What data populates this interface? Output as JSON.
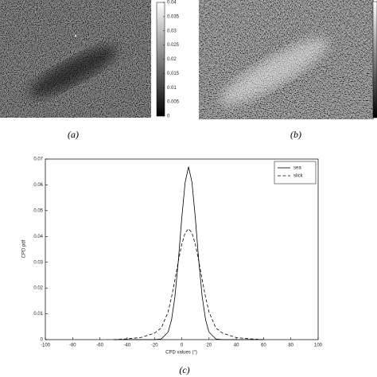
{
  "panels": {
    "a": {
      "label": "(a)",
      "colorbar": {
        "lim": [
          0,
          0.04
        ],
        "ticks": [
          0,
          0.005,
          0.01,
          0.015,
          0.02,
          0.025,
          0.03,
          0.035,
          0.04
        ]
      }
    },
    "b": {
      "label": "(b)"
    },
    "c": {
      "label": "(c)"
    }
  },
  "chart_data": {
    "type": "line",
    "x_label": "CPD values (°)",
    "y_label": "CPD pdf",
    "x": [
      -50,
      -40,
      -30,
      -20,
      -15,
      -10,
      -7.5,
      -5,
      -2.5,
      0,
      2.5,
      5,
      7.5,
      10,
      12.5,
      15,
      17.5,
      20,
      25,
      30,
      40,
      50,
      60
    ],
    "series": [
      {
        "name": "sea",
        "color": "#000000",
        "style": "solid",
        "values": [
          0,
          0,
          0,
          0,
          0.00026,
          0.0029,
          0.0076,
          0.0166,
          0.0305,
          0.047,
          0.061,
          0.067,
          0.061,
          0.047,
          0.0305,
          0.0166,
          0.0076,
          0.0029,
          0.00026,
          0,
          0,
          0,
          0
        ]
      },
      {
        "name": "slick",
        "color": "#000000",
        "style": "dashed",
        "values": [
          0,
          0.0003,
          0.0008,
          0.0025,
          0.0045,
          0.0107,
          0.0164,
          0.0232,
          0.0304,
          0.0369,
          0.0414,
          0.043,
          0.0414,
          0.0369,
          0.0304,
          0.0232,
          0.0164,
          0.0107,
          0.0045,
          0.0025,
          0.0008,
          0.0003,
          0
        ]
      }
    ],
    "xlim": [
      -100,
      100
    ],
    "xticks": [
      -100,
      -80,
      -60,
      -40,
      -20,
      0,
      20,
      40,
      60,
      80,
      100
    ],
    "ylim": [
      0,
      0.07
    ],
    "yticks": [
      0,
      0.01,
      0.02,
      0.03,
      0.04,
      0.05,
      0.06,
      0.07
    ],
    "legend": "upper right"
  }
}
